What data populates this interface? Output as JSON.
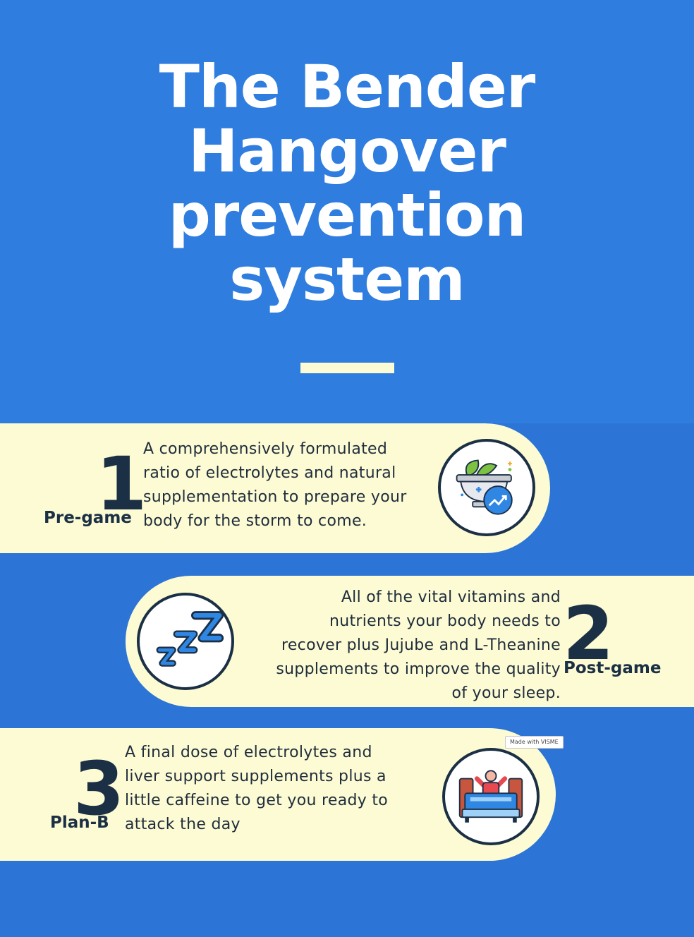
{
  "title": {
    "line1": "The Bender",
    "line2": "Hangover",
    "line3": "prevention",
    "line4": "system"
  },
  "colors": {
    "background_top": "#2f7ddf",
    "background_bottom": "#2c75d6",
    "band": "#fdfbd3",
    "dark_text": "#1b2f45",
    "icon_blue": "#2f86e3"
  },
  "steps": [
    {
      "number": "1",
      "label": "Pre-game",
      "description": "A comprehensively formulated\nratio of electrolytes and natural\nsupplementation to prepare your\nbody for the storm to come.",
      "icon": "herbal-medicine-icon"
    },
    {
      "number": "2",
      "label": "Post-game",
      "description": "All of the vital vitamins and\nnutrients your body needs to\nrecover plus Jujube and L-Theanine\nsupplements to improve the quality\nof your sleep.",
      "icon": "sleep-zzz-icon"
    },
    {
      "number": "3",
      "label": "Plan-B",
      "description": "A final dose of electrolytes and\nliver support supplements plus a\nlittle caffeine to get you ready to\nattack the day",
      "icon": "wake-up-bed-icon"
    }
  ],
  "watermark": "Made with VISME"
}
